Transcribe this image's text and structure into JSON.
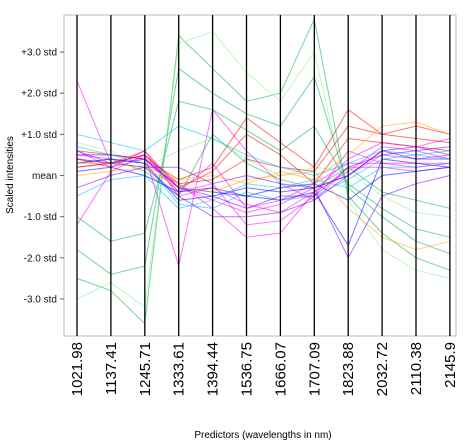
{
  "chart_data": {
    "type": "line",
    "subtype": "parallel-coordinates",
    "title": "",
    "xlabel": "Predictors (wavelengths in nm)",
    "ylabel": "Scaled intensities",
    "categories": [
      "1021.98",
      "1137.41",
      "1245.71",
      "1333.61",
      "1394.44",
      "1536.75",
      "1666.07",
      "1707.09",
      "1823.88",
      "2032.72",
      "2110.38",
      "2145.9"
    ],
    "y_ticks": [
      {
        "label": "+3.0 std",
        "value": 3
      },
      {
        "label": "+2.0 std",
        "value": 2
      },
      {
        "label": "+1.0 std",
        "value": 1
      },
      {
        "label": "mean",
        "value": 0
      },
      {
        "label": "-1.0 std",
        "value": -1
      },
      {
        "label": "-2.0 std",
        "value": -2
      },
      {
        "label": "-3.0 std",
        "value": -3
      }
    ],
    "ylim": [
      -3.9,
      3.9
    ],
    "grid": false,
    "series_colors": [
      "#ff00ff",
      "#00b050",
      "#0000ff",
      "#ff0000",
      "#00bfff",
      "#ffa500",
      "#7f00ff",
      "#90ee90"
    ],
    "series": [
      {
        "color": "#ff00ff",
        "values": [
          0.4,
          0.3,
          0.5,
          -0.3,
          -0.6,
          -0.9,
          -0.7,
          -0.3,
          0.0,
          0.5,
          0.4,
          0.5
        ]
      },
      {
        "color": "#ff00ff",
        "values": [
          0.6,
          0.2,
          0.4,
          -0.4,
          -0.2,
          -1.2,
          -1.1,
          -0.5,
          0.6,
          0.3,
          0.2,
          0.3
        ]
      },
      {
        "color": "#ff00ff",
        "values": [
          2.3,
          0.3,
          0.6,
          -0.5,
          -0.3,
          -0.7,
          -0.9,
          -0.4,
          0.1,
          0.7,
          0.6,
          0.4
        ]
      },
      {
        "color": "#ff00ff",
        "values": [
          -1.2,
          0.1,
          0.5,
          -2.2,
          1.6,
          0.6,
          -0.2,
          -0.6,
          0.2,
          0.2,
          0.1,
          0.2
        ]
      },
      {
        "color": "#ff00ff",
        "values": [
          0.5,
          0.4,
          0.3,
          -0.2,
          -0.8,
          -1.5,
          -1.4,
          -0.4,
          0.4,
          0.8,
          0.7,
          0.9
        ]
      },
      {
        "color": "#ff00ff",
        "values": [
          0.2,
          0.3,
          0.5,
          -0.4,
          0.3,
          -0.8,
          -0.6,
          -0.2,
          0.3,
          0.3,
          0.3,
          0.3
        ]
      },
      {
        "color": "#00b050",
        "values": [
          -2.5,
          -2.8,
          -3.6,
          3.4,
          2.6,
          1.8,
          2.0,
          3.8,
          -0.5,
          -1.4,
          -2.0,
          -2.3
        ]
      },
      {
        "color": "#00b050",
        "values": [
          -1.8,
          -2.4,
          -2.2,
          2.6,
          2.0,
          1.5,
          1.2,
          2.4,
          -0.3,
          -1.0,
          -1.6,
          -1.9
        ]
      },
      {
        "color": "#00b050",
        "values": [
          -1.0,
          -1.6,
          -1.4,
          1.8,
          1.6,
          1.1,
          0.6,
          1.2,
          -0.2,
          -0.8,
          -1.3,
          -1.5
        ]
      },
      {
        "color": "#00b050",
        "values": [
          0.3,
          0.4,
          0.1,
          -0.5,
          1.0,
          0.3,
          -0.1,
          -0.3,
          0.2,
          -0.4,
          -0.6,
          -0.8
        ]
      },
      {
        "color": "#90ee90",
        "values": [
          -3.0,
          -2.6,
          -3.2,
          3.2,
          3.5,
          2.5,
          1.8,
          3.0,
          -0.6,
          -1.8,
          -2.3,
          -2.5
        ]
      },
      {
        "color": "#90ee90",
        "values": [
          0.8,
          0.6,
          0.2,
          0.6,
          0.9,
          0.4,
          0.0,
          0.2,
          0.1,
          -0.5,
          -0.9,
          -1.0
        ]
      },
      {
        "color": "#0000ff",
        "values": [
          0.5,
          0.5,
          0.4,
          -0.3,
          -0.4,
          -0.5,
          -0.6,
          -0.4,
          -1.7,
          0.4,
          0.3,
          0.2
        ]
      },
      {
        "color": "#0000ff",
        "values": [
          0.3,
          0.4,
          0.3,
          -0.6,
          -0.5,
          -0.3,
          -0.4,
          -0.3,
          0.0,
          0.6,
          0.4,
          0.4
        ]
      },
      {
        "color": "#0000ff",
        "values": [
          0.1,
          0.2,
          0.0,
          -0.4,
          -0.3,
          -0.5,
          -0.3,
          -0.2,
          -0.6,
          0.0,
          0.1,
          0.2
        ]
      },
      {
        "color": "#ff0000",
        "values": [
          0.6,
          0.5,
          0.4,
          -0.1,
          0.2,
          1.4,
          0.8,
          0.2,
          1.6,
          1.0,
          0.9,
          0.8
        ]
      },
      {
        "color": "#ff0000",
        "values": [
          0.2,
          0.3,
          0.5,
          -0.2,
          -0.1,
          0.4,
          0.2,
          0.1,
          1.2,
          1.0,
          1.2,
          1.0
        ]
      },
      {
        "color": "#ff0000",
        "values": [
          0.4,
          0.2,
          0.6,
          -0.3,
          0.1,
          1.0,
          0.5,
          -0.2,
          0.9,
          0.8,
          0.7,
          0.6
        ]
      },
      {
        "color": "#00bfff",
        "values": [
          0.7,
          0.5,
          0.3,
          -0.7,
          -0.8,
          -0.4,
          -0.6,
          -0.5,
          -0.1,
          0.4,
          0.5,
          0.6
        ]
      },
      {
        "color": "#00bfff",
        "values": [
          -0.5,
          -0.1,
          0.0,
          -0.8,
          -0.6,
          -0.2,
          -0.3,
          -0.1,
          -0.3,
          0.2,
          0.2,
          0.3
        ]
      },
      {
        "color": "#00bfff",
        "values": [
          1.0,
          0.8,
          0.6,
          1.2,
          0.9,
          0.5,
          0.2,
          0.0,
          0.3,
          0.6,
          0.5,
          0.4
        ]
      },
      {
        "color": "#ffa500",
        "values": [
          0.3,
          0.3,
          0.2,
          -0.1,
          0.0,
          -0.2,
          0.1,
          -0.1,
          0.5,
          1.2,
          1.3,
          1.0
        ]
      },
      {
        "color": "#ffa500",
        "values": [
          0.0,
          0.1,
          0.2,
          -0.3,
          -0.4,
          -0.1,
          0.0,
          0.1,
          -0.8,
          -1.5,
          -1.8,
          -1.6
        ]
      },
      {
        "color": "#7f00ff",
        "values": [
          0.4,
          0.3,
          0.4,
          -0.3,
          -0.5,
          -0.8,
          -0.5,
          -0.5,
          0.2,
          0.5,
          0.6,
          0.7
        ]
      },
      {
        "color": "#7f00ff",
        "values": [
          -0.3,
          0.0,
          0.2,
          -0.5,
          -1.0,
          -1.0,
          -0.9,
          -0.6,
          0.0,
          0.6,
          0.7,
          0.5
        ]
      },
      {
        "color": "#7f00ff",
        "values": [
          0.6,
          0.3,
          0.2,
          0.2,
          -0.2,
          0.0,
          -0.2,
          -0.3,
          -2.0,
          -0.5,
          -0.2,
          0.0
        ]
      }
    ]
  }
}
